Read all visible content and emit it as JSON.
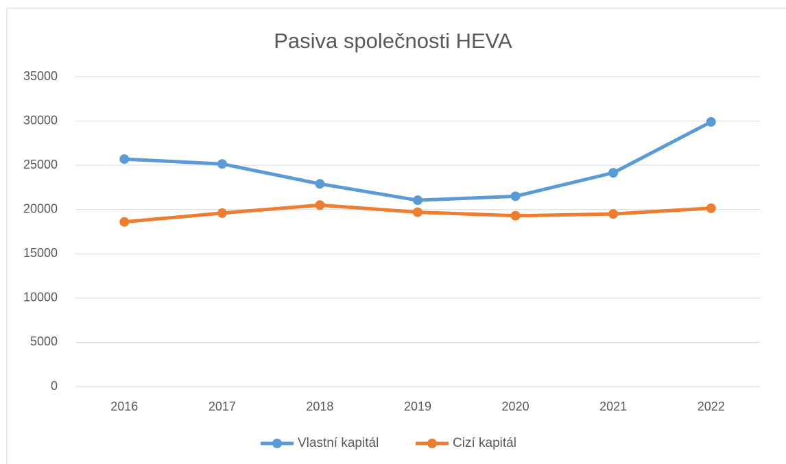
{
  "chart_data": {
    "type": "line",
    "title": "Pasiva společnosti HEVA",
    "categories": [
      "2016",
      "2017",
      "2018",
      "2019",
      "2020",
      "2021",
      "2022"
    ],
    "series": [
      {
        "name": "Vlastní kapitál",
        "color": "#5b9bd5",
        "values": [
          25700,
          25150,
          22900,
          21050,
          21500,
          24150,
          29900
        ]
      },
      {
        "name": "Cizí kapitál",
        "color": "#ed7d31",
        "values": [
          18600,
          19600,
          20500,
          19700,
          19300,
          19500,
          20150
        ]
      }
    ],
    "ylim": [
      0,
      35000
    ],
    "yticks": [
      0,
      5000,
      10000,
      15000,
      20000,
      25000,
      30000,
      35000
    ],
    "grid": true,
    "legend": "bottom"
  }
}
